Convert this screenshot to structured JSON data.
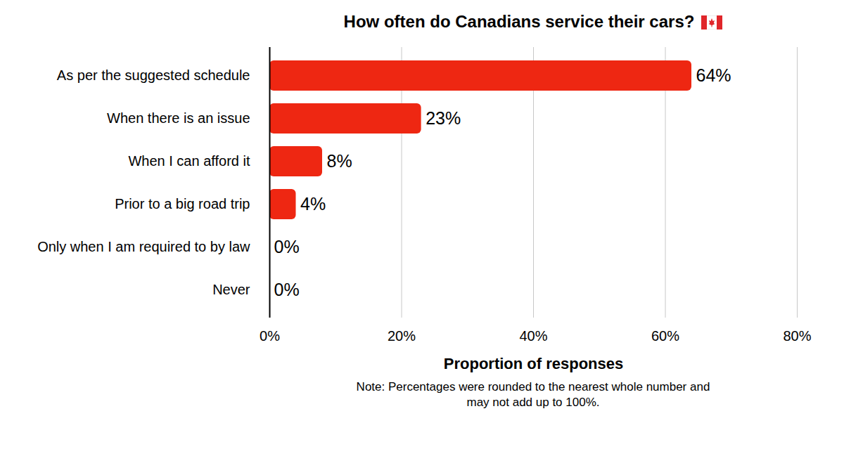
{
  "chart_data": {
    "type": "bar",
    "title": "How often do Canadians service their cars?",
    "orientation": "horizontal",
    "categories": [
      "As per the suggested schedule",
      "When there is an issue",
      "When I can afford it",
      "Prior to a big road trip",
      "Only when I am required to by law",
      "Never"
    ],
    "values": [
      64,
      23,
      8,
      4,
      0,
      0
    ],
    "value_labels": [
      "64%",
      "23%",
      "8%",
      "4%",
      "0%",
      "0%"
    ],
    "data_labels": true,
    "color": "#ee2712",
    "x_label": "Proportion of responses",
    "xlim": [
      0,
      80
    ],
    "xticks": [
      {
        "value": 0,
        "label": "0%"
      },
      {
        "value": 20,
        "label": "20%"
      },
      {
        "value": 40,
        "label": "40%"
      },
      {
        "value": 60,
        "label": "60%"
      },
      {
        "value": 80,
        "label": "80%"
      }
    ],
    "grid": true,
    "annotations": [
      "Note: Percentages were rounded to the nearest whole number and may not add up to 100%."
    ]
  }
}
